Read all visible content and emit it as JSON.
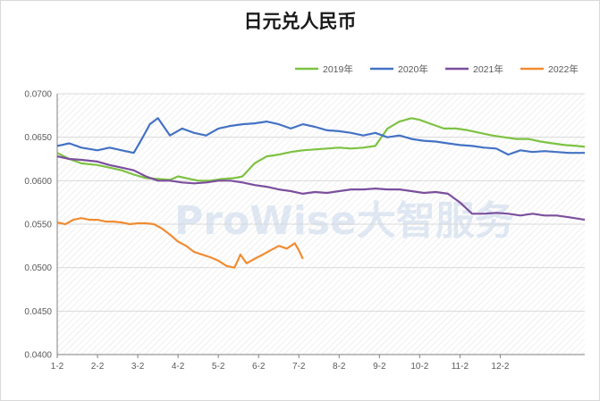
{
  "chart_data": {
    "type": "line",
    "title": "日元兑人民币",
    "xlabel": "",
    "ylabel": "",
    "x_ticks": [
      "1-2",
      "2-2",
      "3-2",
      "4-2",
      "5-2",
      "6-2",
      "7-2",
      "8-2",
      "9-2",
      "10-2",
      "11-2",
      "12-2"
    ],
    "ylim": [
      0.04,
      0.07
    ],
    "y_ticks": [
      "0.0700",
      "0.0650",
      "0.0600",
      "0.0550",
      "0.0500",
      "0.0450",
      "0.0400"
    ],
    "y_tick_values": [
      0.07,
      0.065,
      0.06,
      0.055,
      0.05,
      0.045,
      0.04
    ],
    "legend_position": "top-right",
    "grid": true,
    "watermark": "ProWise大智服务",
    "series": [
      {
        "name": "2019年",
        "color": "#7dc242",
        "points": [
          [
            0,
            0.0632
          ],
          [
            0.3,
            0.0625
          ],
          [
            0.6,
            0.062
          ],
          [
            1,
            0.0618
          ],
          [
            1.3,
            0.0615
          ],
          [
            1.6,
            0.0612
          ],
          [
            1.9,
            0.0607
          ],
          [
            2.2,
            0.0603
          ],
          [
            2.5,
            0.0602
          ],
          [
            2.8,
            0.0601
          ],
          [
            3.0,
            0.0605
          ],
          [
            3.2,
            0.0603
          ],
          [
            3.5,
            0.06
          ],
          [
            3.8,
            0.06
          ],
          [
            4.1,
            0.0602
          ],
          [
            4.4,
            0.0603
          ],
          [
            4.6,
            0.0605
          ],
          [
            4.9,
            0.062
          ],
          [
            5.2,
            0.0628
          ],
          [
            5.5,
            0.063
          ],
          [
            5.8,
            0.0633
          ],
          [
            6.1,
            0.0635
          ],
          [
            6.4,
            0.0636
          ],
          [
            6.7,
            0.0637
          ],
          [
            7.0,
            0.0638
          ],
          [
            7.3,
            0.0637
          ],
          [
            7.6,
            0.0638
          ],
          [
            7.9,
            0.064
          ],
          [
            8.2,
            0.066
          ],
          [
            8.5,
            0.0668
          ],
          [
            8.8,
            0.0672
          ],
          [
            9.0,
            0.067
          ],
          [
            9.3,
            0.0665
          ],
          [
            9.6,
            0.066
          ],
          [
            9.9,
            0.066
          ],
          [
            10.2,
            0.0658
          ],
          [
            10.5,
            0.0655
          ],
          [
            10.8,
            0.0652
          ],
          [
            11.1,
            0.065
          ],
          [
            11.4,
            0.0648
          ],
          [
            11.7,
            0.0648
          ],
          [
            12.0,
            0.0645
          ],
          [
            12.3,
            0.0643
          ],
          [
            12.6,
            0.0641
          ],
          [
            12.9,
            0.064
          ],
          [
            13.1,
            0.0639
          ]
        ]
      },
      {
        "name": "2020年",
        "color": "#4472c4",
        "points": [
          [
            0,
            0.064
          ],
          [
            0.3,
            0.0643
          ],
          [
            0.6,
            0.0638
          ],
          [
            1,
            0.0635
          ],
          [
            1.3,
            0.0638
          ],
          [
            1.6,
            0.0635
          ],
          [
            1.9,
            0.0632
          ],
          [
            2.1,
            0.0648
          ],
          [
            2.3,
            0.0665
          ],
          [
            2.5,
            0.0672
          ],
          [
            2.8,
            0.0652
          ],
          [
            3.1,
            0.066
          ],
          [
            3.4,
            0.0655
          ],
          [
            3.7,
            0.0652
          ],
          [
            4.0,
            0.066
          ],
          [
            4.3,
            0.0663
          ],
          [
            4.6,
            0.0665
          ],
          [
            4.9,
            0.0666
          ],
          [
            5.2,
            0.0668
          ],
          [
            5.5,
            0.0665
          ],
          [
            5.8,
            0.066
          ],
          [
            6.1,
            0.0665
          ],
          [
            6.4,
            0.0662
          ],
          [
            6.7,
            0.0658
          ],
          [
            7.0,
            0.0657
          ],
          [
            7.3,
            0.0655
          ],
          [
            7.6,
            0.0652
          ],
          [
            7.9,
            0.0655
          ],
          [
            8.2,
            0.065
          ],
          [
            8.5,
            0.0652
          ],
          [
            8.8,
            0.0648
          ],
          [
            9.1,
            0.0646
          ],
          [
            9.4,
            0.0645
          ],
          [
            9.7,
            0.0643
          ],
          [
            10.0,
            0.0641
          ],
          [
            10.3,
            0.064
          ],
          [
            10.6,
            0.0638
          ],
          [
            10.9,
            0.0637
          ],
          [
            11.2,
            0.063
          ],
          [
            11.5,
            0.0635
          ],
          [
            11.8,
            0.0633
          ],
          [
            12.1,
            0.0634
          ],
          [
            12.4,
            0.0633
          ],
          [
            12.7,
            0.0632
          ],
          [
            13.1,
            0.0632
          ]
        ]
      },
      {
        "name": "2021年",
        "color": "#7b4f9d",
        "points": [
          [
            0,
            0.0628
          ],
          [
            0.3,
            0.0625
          ],
          [
            0.6,
            0.0624
          ],
          [
            1,
            0.0622
          ],
          [
            1.3,
            0.0618
          ],
          [
            1.6,
            0.0615
          ],
          [
            1.9,
            0.0612
          ],
          [
            2.2,
            0.0605
          ],
          [
            2.5,
            0.06
          ],
          [
            2.8,
            0.06
          ],
          [
            3.1,
            0.0598
          ],
          [
            3.4,
            0.0597
          ],
          [
            3.7,
            0.0598
          ],
          [
            4.0,
            0.06
          ],
          [
            4.3,
            0.06
          ],
          [
            4.6,
            0.0598
          ],
          [
            4.9,
            0.0595
          ],
          [
            5.2,
            0.0593
          ],
          [
            5.5,
            0.059
          ],
          [
            5.8,
            0.0588
          ],
          [
            6.1,
            0.0585
          ],
          [
            6.4,
            0.0587
          ],
          [
            6.7,
            0.0586
          ],
          [
            7.0,
            0.0588
          ],
          [
            7.3,
            0.059
          ],
          [
            7.6,
            0.059
          ],
          [
            7.9,
            0.0591
          ],
          [
            8.2,
            0.059
          ],
          [
            8.5,
            0.059
          ],
          [
            8.8,
            0.0588
          ],
          [
            9.1,
            0.0586
          ],
          [
            9.4,
            0.0587
          ],
          [
            9.7,
            0.0585
          ],
          [
            10.0,
            0.0575
          ],
          [
            10.3,
            0.0562
          ],
          [
            10.6,
            0.0562
          ],
          [
            10.9,
            0.0563
          ],
          [
            11.2,
            0.0562
          ],
          [
            11.5,
            0.056
          ],
          [
            11.8,
            0.0562
          ],
          [
            12.1,
            0.056
          ],
          [
            12.4,
            0.056
          ],
          [
            12.7,
            0.0558
          ],
          [
            13.1,
            0.0555
          ]
        ]
      },
      {
        "name": "2022年",
        "color": "#f08c33",
        "points": [
          [
            0,
            0.0552
          ],
          [
            0.2,
            0.055
          ],
          [
            0.4,
            0.0555
          ],
          [
            0.6,
            0.0557
          ],
          [
            0.8,
            0.0555
          ],
          [
            1.0,
            0.0555
          ],
          [
            1.2,
            0.0553
          ],
          [
            1.4,
            0.0553
          ],
          [
            1.6,
            0.0552
          ],
          [
            1.8,
            0.055
          ],
          [
            2.0,
            0.0551
          ],
          [
            2.2,
            0.0551
          ],
          [
            2.4,
            0.055
          ],
          [
            2.6,
            0.0545
          ],
          [
            2.8,
            0.0538
          ],
          [
            3.0,
            0.053
          ],
          [
            3.2,
            0.0525
          ],
          [
            3.4,
            0.0518
          ],
          [
            3.6,
            0.0515
          ],
          [
            3.8,
            0.0512
          ],
          [
            4.0,
            0.0508
          ],
          [
            4.2,
            0.0502
          ],
          [
            4.4,
            0.05
          ],
          [
            4.55,
            0.0515
          ],
          [
            4.7,
            0.0505
          ],
          [
            4.9,
            0.051
          ],
          [
            5.1,
            0.0515
          ],
          [
            5.3,
            0.052
          ],
          [
            5.5,
            0.0525
          ],
          [
            5.7,
            0.0522
          ],
          [
            5.9,
            0.0528
          ],
          [
            6.0,
            0.052
          ],
          [
            6.1,
            0.051
          ]
        ]
      }
    ]
  }
}
